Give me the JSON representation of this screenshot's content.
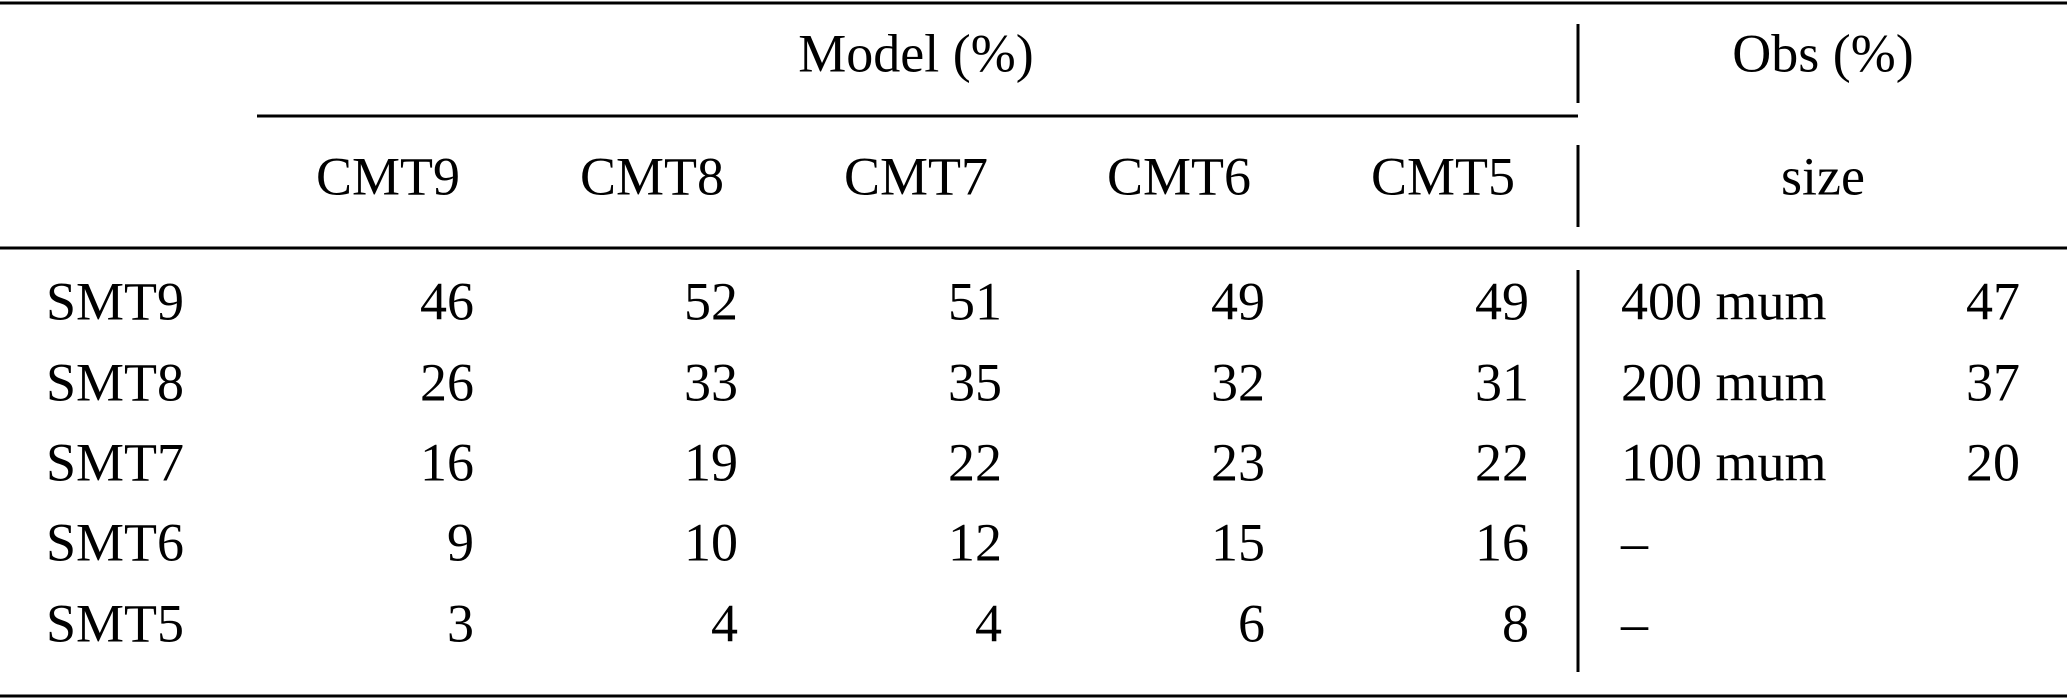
{
  "header": {
    "model_group": "Model (%)",
    "obs_group": "Obs (%)",
    "columns": [
      "CMT9",
      "CMT8",
      "CMT7",
      "CMT6",
      "CMT5"
    ],
    "obs_column": "size"
  },
  "table": {
    "rows": [
      {
        "label": "SMT9",
        "values": [
          46,
          52,
          51,
          49,
          49
        ],
        "obs_size": "400 mum",
        "obs_value": 47
      },
      {
        "label": "SMT8",
        "values": [
          26,
          33,
          35,
          32,
          31
        ],
        "obs_size": "200 mum",
        "obs_value": 37
      },
      {
        "label": "SMT7",
        "values": [
          16,
          19,
          22,
          23,
          22
        ],
        "obs_size": "100 mum",
        "obs_value": 20
      },
      {
        "label": "SMT6",
        "values": [
          9,
          10,
          12,
          15,
          16
        ],
        "obs_size": "–"
      },
      {
        "label": "SMT5",
        "values": [
          3,
          4,
          4,
          6,
          8
        ],
        "obs_size": "–"
      }
    ]
  }
}
